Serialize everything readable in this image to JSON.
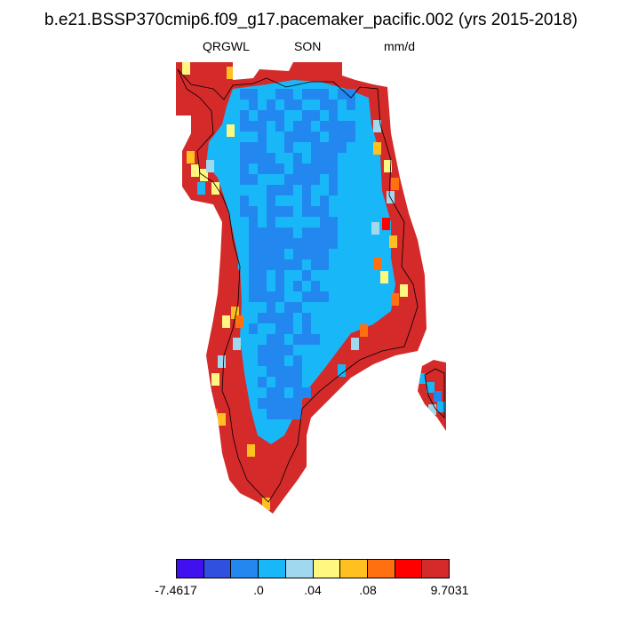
{
  "title": "b.e21.BSSP370cmip6.f09_g17.pacemaker_pacific.002 (yrs 2015-2018)",
  "subtitle": {
    "left": "QRGWL",
    "center": "SON",
    "right": "mm/d"
  },
  "colorbar": {
    "colors": [
      "#4010f0",
      "#3050e0",
      "#2288f0",
      "#18b8f8",
      "#a0d8f0",
      "#fff880",
      "#ffc020",
      "#ff7010",
      "#ff0000",
      "#d42a2a"
    ],
    "labels": [
      "-7.4617",
      ".0",
      ".04",
      ".08",
      "9.7031"
    ]
  },
  "map_colors": {
    "coast": "#d42a2a",
    "interior": "#2288f0",
    "ice_margin": "#18b8f8",
    "mixed": [
      "#fff880",
      "#ffc020",
      "#ff7010",
      "#a0d8f0",
      "#ff0000"
    ]
  }
}
